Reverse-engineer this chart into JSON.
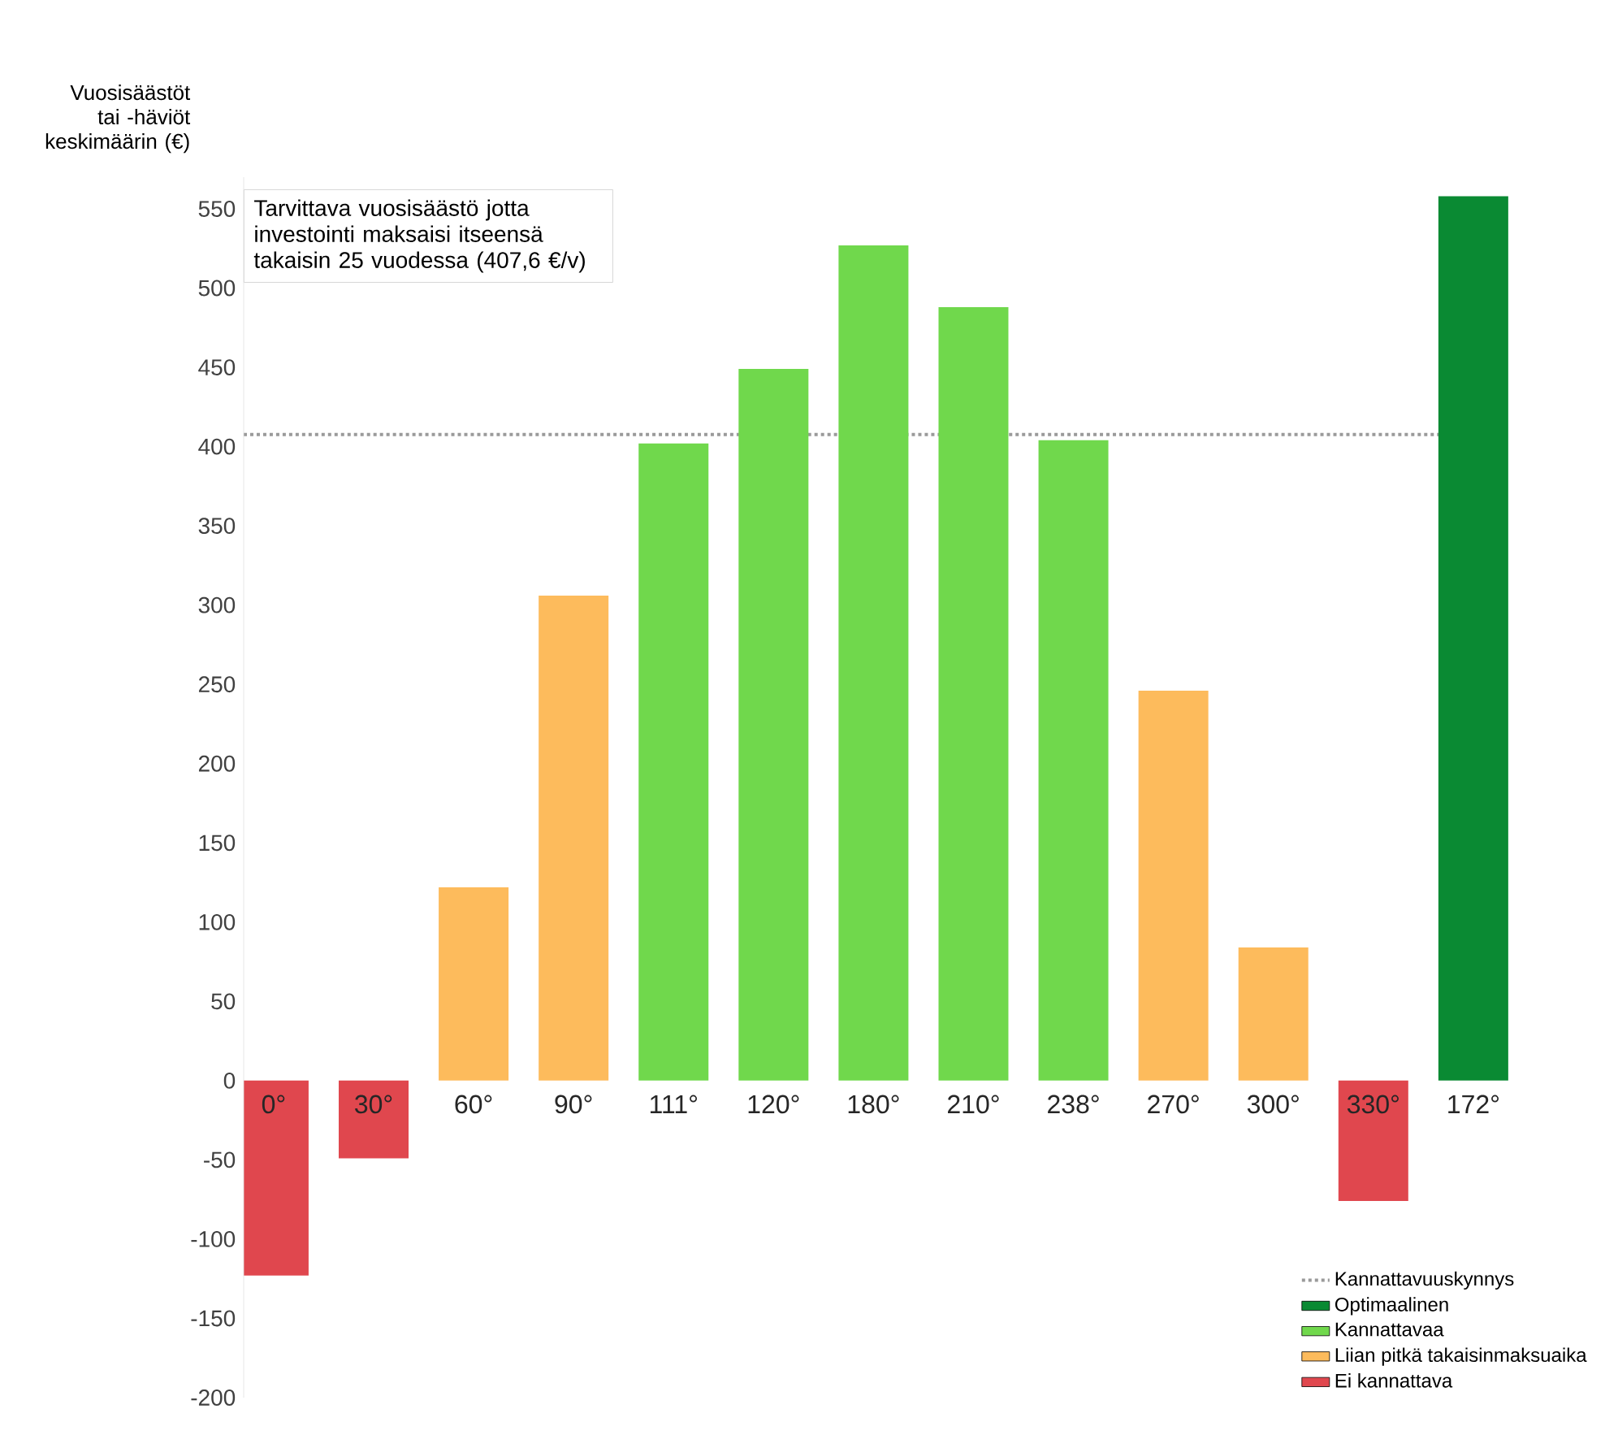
{
  "chart_data": {
    "type": "bar",
    "ylabel": "Vuosisäästöt tai -häviöt keskimäärin (€)",
    "categories": [
      "0°",
      "30°",
      "60°",
      "90°",
      "111°",
      "120°",
      "180°",
      "210°",
      "238°",
      "270°",
      "300°",
      "330°",
      "172°"
    ],
    "series": [
      {
        "name": "Optimaalinen",
        "color": "#0a8a33",
        "values": [
          null,
          null,
          null,
          null,
          null,
          null,
          null,
          null,
          null,
          null,
          null,
          null,
          558
        ]
      },
      {
        "name": "Kannattavaa",
        "color": "#70d84c",
        "values": [
          null,
          null,
          null,
          null,
          402,
          449,
          527,
          488,
          404,
          null,
          null,
          null,
          null
        ]
      },
      {
        "name": "Liian pitkä takaisinmaksuaika",
        "color": "#fdbb5c",
        "values": [
          null,
          null,
          122,
          306,
          null,
          null,
          null,
          null,
          null,
          246,
          84,
          null,
          null
        ]
      },
      {
        "name": "Ei kannattava",
        "color": "#e0474e",
        "values": [
          -123,
          -49,
          null,
          null,
          null,
          null,
          null,
          null,
          null,
          null,
          null,
          -76,
          null
        ]
      }
    ],
    "ylim": [
      -200,
      570
    ],
    "yticks": [
      -200,
      -150,
      -100,
      -50,
      0,
      50,
      100,
      150,
      200,
      250,
      300,
      350,
      400,
      450,
      500,
      550
    ],
    "ref_lines": [
      {
        "axis": "y",
        "value": 407.6,
        "label": "Kannattavuuskynnys",
        "color": "#9a9a9a",
        "line_style": "dotted"
      }
    ],
    "annotations": [
      "Tarvittava vuosisäästö jotta investointi maksaisi itseensä takaisin 25 vuodessa (407,6 €/v)"
    ],
    "legend": "bottom right",
    "grid": false
  }
}
